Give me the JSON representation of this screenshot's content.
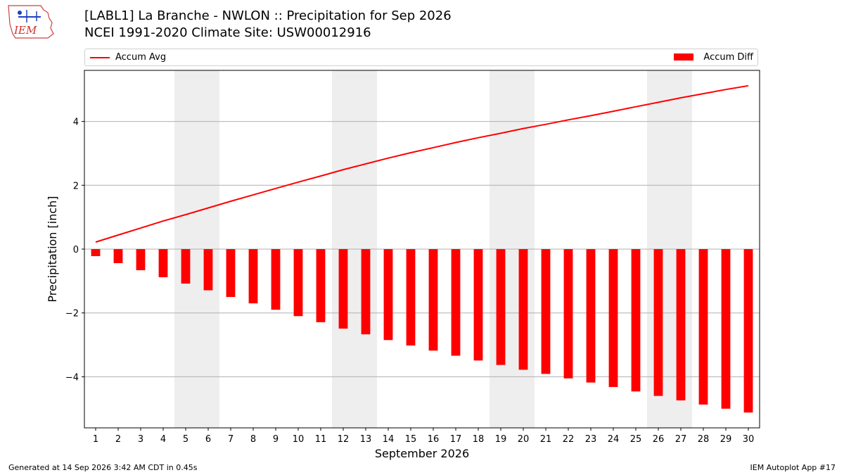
{
  "header": {
    "logo_text": "IEM",
    "title_line1": "[LABL1] La Branche - NWLON :: Precipitation for Sep 2026",
    "title_line2": "NCEI 1991-2020 Climate Site: USW00012916"
  },
  "legend": {
    "line_label": "Accum Avg",
    "bar_label": "Accum Diff",
    "placement": "top"
  },
  "footer": {
    "left": "Generated at 14 Sep 2026 3:42 AM CDT in 0.45s",
    "right": "IEM Autoplot App #17"
  },
  "colors": {
    "series": "#ff0000",
    "weekend_shade": "#eeeeee",
    "grid": "#b0b0b0"
  },
  "chart_data": {
    "type": "bar",
    "xlabel": "September 2026",
    "ylabel": "Precipitation [inch]",
    "x": [
      1,
      2,
      3,
      4,
      5,
      6,
      7,
      8,
      9,
      10,
      11,
      12,
      13,
      14,
      15,
      16,
      17,
      18,
      19,
      20,
      21,
      22,
      23,
      24,
      25,
      26,
      27,
      28,
      29,
      30
    ],
    "xlim": [
      0.5,
      30.5
    ],
    "ylim": [
      -5.6,
      5.6
    ],
    "yticks": [
      -4,
      -2,
      0,
      2,
      4
    ],
    "grid": true,
    "weekend_days": [
      5,
      6,
      12,
      13,
      19,
      20,
      26,
      27
    ],
    "series": [
      {
        "name": "Accum Diff",
        "type": "bar",
        "values": [
          -0.22,
          -0.44,
          -0.66,
          -0.88,
          -1.08,
          -1.29,
          -1.5,
          -1.7,
          -1.9,
          -2.1,
          -2.29,
          -2.49,
          -2.67,
          -2.85,
          -3.02,
          -3.18,
          -3.34,
          -3.49,
          -3.63,
          -3.78,
          -3.91,
          -4.05,
          -4.18,
          -4.32,
          -4.46,
          -4.6,
          -4.74,
          -4.87,
          -5.0,
          -5.12
        ]
      },
      {
        "name": "Accum Avg",
        "type": "line",
        "values": [
          0.22,
          0.44,
          0.66,
          0.88,
          1.08,
          1.29,
          1.5,
          1.7,
          1.9,
          2.1,
          2.29,
          2.49,
          2.67,
          2.85,
          3.02,
          3.18,
          3.34,
          3.49,
          3.63,
          3.78,
          3.91,
          4.05,
          4.18,
          4.32,
          4.46,
          4.6,
          4.74,
          4.87,
          5.0,
          5.12
        ]
      }
    ]
  }
}
